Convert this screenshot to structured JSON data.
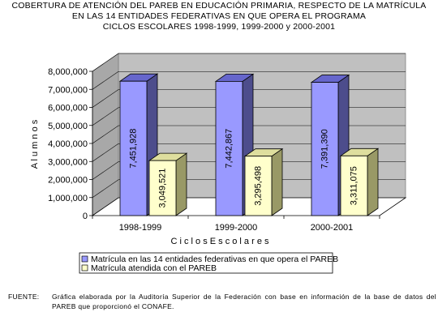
{
  "title_lines": [
    "COBERTURA DE ATENCIÓN DEL PAREB EN EDUCACIÓN PRIMARIA, RESPECTO DE LA MATRÍCULA",
    "EN LAS 14 ENTIDADES FEDERATIVAS EN QUE OPERA EL PROGRAMA",
    "CICLOS ESCOLARES 1998-1999, 1999-2000 y 2000-2001"
  ],
  "chart_data": {
    "type": "bar",
    "categories": [
      "1998-1999",
      "1999-2000",
      "2000-2001"
    ],
    "series": [
      {
        "name": "Matrícula en las 14 entidades federativas en que opera el PAREB",
        "values": [
          7451928,
          7442867,
          7391390
        ],
        "labels": [
          "7,451,928",
          "7,442,867",
          "7,391,390"
        ],
        "color": "#9999ff"
      },
      {
        "name": "Matrícula atendida con el PAREB",
        "values": [
          3049521,
          3295498,
          3311075
        ],
        "labels": [
          "3,049,521",
          "3,295,498",
          "3,311,075"
        ],
        "color": "#ffffcc"
      }
    ],
    "ylabel": "Alumnos",
    "xlabel": "Ciclos Escolares",
    "ylim": [
      0,
      8000000
    ],
    "yticks": [
      0,
      1000000,
      2000000,
      3000000,
      4000000,
      5000000,
      6000000,
      7000000,
      8000000
    ],
    "ytick_labels": [
      "0",
      "1,000,000",
      "2,000,000",
      "3,000,000",
      "4,000,000",
      "5,000,000",
      "6,000,000",
      "7,000,000",
      "8,000,000"
    ],
    "grid": true,
    "legend_position": "bottom-left",
    "wall_color": "#c0c0c0"
  },
  "footer": {
    "label": "FUENTE:",
    "text": "Gráfica elaborada por la Auditoría Superior de la Federación con base en información de la base de datos del PAREB que proporcionó el CONAFE."
  }
}
